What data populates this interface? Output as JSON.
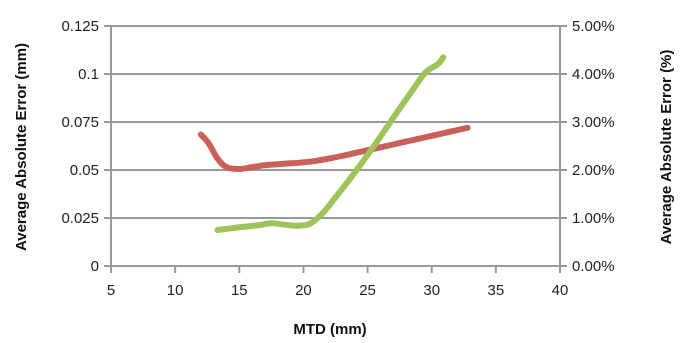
{
  "chart_data": {
    "type": "line",
    "title": "",
    "xlabel": "MTD (mm)",
    "ylabel": "Average Absolute Error (mm)",
    "y2label": "Average Absolute Error (%)",
    "xlim": [
      5,
      40
    ],
    "ylim": [
      0,
      0.125
    ],
    "y2lim": [
      0,
      0.05
    ],
    "x_ticks": [
      5,
      10,
      15,
      20,
      25,
      30,
      35,
      40
    ],
    "x_tick_labels": [
      "5",
      "10",
      "15",
      "20",
      "25",
      "30",
      "35",
      "40"
    ],
    "y_ticks": [
      0,
      0.025,
      0.05,
      0.075,
      0.1,
      0.125
    ],
    "y_tick_labels": [
      "0",
      "0.025",
      "0.05",
      "0.075",
      "0.1",
      "0.125"
    ],
    "y2_ticks": [
      0,
      0.01,
      0.02,
      0.03,
      0.04,
      0.05
    ],
    "y2_tick_labels": [
      "0.00%",
      "1.00%",
      "2.00%",
      "3.00%",
      "4.00%",
      "5.00%"
    ],
    "grid": true,
    "legend": "none",
    "series": [
      {
        "axis": "left",
        "color": "#c9605a",
        "x": [
          12.0,
          12.6,
          13.3,
          14.0,
          15.0,
          16.0,
          17.0,
          18.0,
          19.0,
          20.0,
          21.0,
          22.0,
          23.0,
          24.0,
          25.0,
          26.0,
          27.0,
          28.0,
          29.0,
          30.0,
          31.0,
          32.0,
          32.8
        ],
        "values": [
          0.0685,
          0.064,
          0.056,
          0.0515,
          0.0505,
          0.0515,
          0.0525,
          0.053,
          0.0535,
          0.054,
          0.0548,
          0.056,
          0.0573,
          0.0588,
          0.0603,
          0.0618,
          0.0633,
          0.0648,
          0.0663,
          0.0678,
          0.0693,
          0.0708,
          0.072
        ]
      },
      {
        "axis": "right",
        "color": "#9ec35a",
        "x": [
          13.3,
          14.5,
          15.5,
          16.5,
          17.5,
          18.5,
          19.5,
          20.5,
          21.5,
          22.5,
          23.5,
          24.5,
          25.5,
          26.5,
          27.5,
          28.5,
          29.5,
          30.5,
          30.9
        ],
        "values": [
          0.0075,
          0.0079,
          0.0082,
          0.0085,
          0.0089,
          0.0086,
          0.0084,
          0.0088,
          0.011,
          0.0143,
          0.0177,
          0.0213,
          0.025,
          0.0289,
          0.0328,
          0.0366,
          0.0403,
          0.0421,
          0.0435
        ]
      }
    ]
  }
}
